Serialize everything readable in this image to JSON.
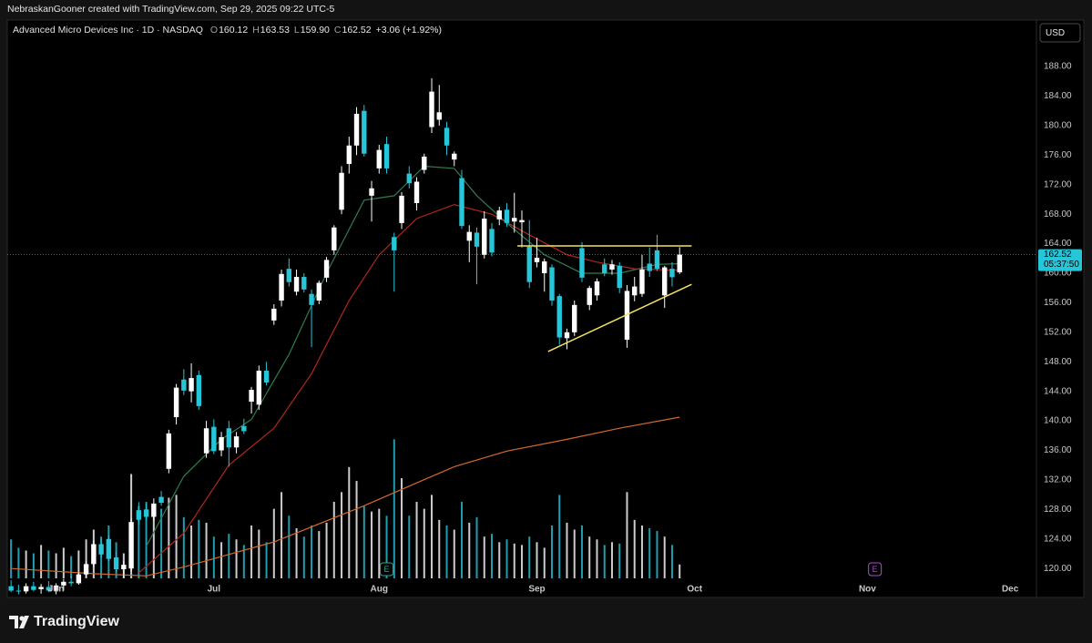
{
  "header": {
    "credit": "NebraskanGooner created with TradingView.com, Sep 29, 2025 09:22 UTC-5"
  },
  "toolbar": {
    "currency": "USD"
  },
  "footer": {
    "logo": "TradingView"
  },
  "chart_data": {
    "type": "candlestick",
    "title": "Advanced Micro Devices Inc · 1D · NASDAQ",
    "ohlc_legend": [
      {
        "key": "O",
        "text": "160.12"
      },
      {
        "key": "H",
        "text": "163.53"
      },
      {
        "key": "L",
        "text": "159.90"
      },
      {
        "key": "C",
        "text": "162.52"
      }
    ],
    "change": "+3.06 (+1.92%)",
    "last_price": 162.52,
    "countdown": "05:37:50",
    "up_color": "#ffffff",
    "down_color": "#26c6da",
    "grid": false,
    "ylim": [
      116.2,
      194.3
    ],
    "yticks": [
      {
        "value": 120,
        "label": "120.00"
      },
      {
        "value": 124,
        "label": "124.00"
      },
      {
        "value": 128,
        "label": "128.00"
      },
      {
        "value": 132,
        "label": "132.00"
      },
      {
        "value": 136,
        "label": "136.00"
      },
      {
        "value": 140,
        "label": "140.00"
      },
      {
        "value": 144,
        "label": "144.00"
      },
      {
        "value": 148,
        "label": "148.00"
      },
      {
        "value": 152,
        "label": "152.00"
      },
      {
        "value": 156,
        "label": "156.00"
      },
      {
        "value": 160,
        "label": "160.00"
      },
      {
        "value": 164,
        "label": "164.00"
      },
      {
        "value": 168,
        "label": "168.00"
      },
      {
        "value": 172,
        "label": "172.00"
      },
      {
        "value": 176,
        "label": "176.00"
      },
      {
        "value": 180,
        "label": "180.00"
      },
      {
        "value": 184,
        "label": "184.00"
      },
      {
        "value": 188,
        "label": "188.00"
      }
    ],
    "volume_lim": [
      0,
      110
    ],
    "categories": [
      null,
      null,
      null,
      null,
      null,
      null,
      "Jun",
      null,
      null,
      null,
      null,
      null,
      null,
      null,
      null,
      null,
      null,
      null,
      null,
      null,
      null,
      null,
      null,
      null,
      null,
      null,
      null,
      "Jul",
      null,
      null,
      null,
      null,
      null,
      null,
      null,
      null,
      null,
      null,
      null,
      null,
      null,
      null,
      null,
      null,
      null,
      null,
      null,
      null,
      null,
      "Aug",
      null,
      null,
      null,
      null,
      null,
      null,
      null,
      null,
      null,
      null,
      null,
      null,
      null,
      null,
      null,
      null,
      null,
      null,
      null,
      null,
      "Sep",
      null,
      null,
      null,
      null,
      null,
      null,
      null,
      null,
      null,
      null,
      null,
      null,
      null,
      null,
      null,
      null,
      null,
      null,
      null,
      null,
      "Oct",
      null,
      null,
      null,
      null,
      null,
      null,
      null,
      null,
      null,
      null,
      null,
      null,
      null,
      null,
      null,
      null,
      null,
      null,
      null,
      null,
      null,
      null,
      "Nov",
      null,
      null,
      null,
      null,
      null,
      null,
      null,
      null,
      null,
      null,
      null,
      null,
      null,
      null,
      null,
      null,
      null,
      null,
      "Dec",
      null,
      null,
      null
    ],
    "open": [
      117.6,
      117.0,
      116.9,
      117.6,
      117.2,
      117.5,
      117.0,
      117.7,
      118.2,
      118.0,
      119.2,
      120.6,
      123.3,
      124.0,
      121.5,
      119.9,
      120.0,
      127.9,
      128.0,
      127.0,
      129.7,
      133.5,
      140.5,
      145.6,
      144.0,
      146.2,
      135.6,
      139.2,
      136.0,
      139.0,
      136.4,
      139.3,
      142.6,
      142.2,
      146.8,
      153.6,
      156.3,
      160.6,
      157.5,
      159.5,
      157.2,
      156.3,
      159.4,
      163.1,
      168.6,
      174.8,
      177.3,
      182.0,
      170.5,
      174.2,
      177.5,
      164.9,
      166.8,
      173.5,
      169.5,
      174.0,
      179.8,
      180.8,
      179.7,
      175.4,
      172.9,
      164.4,
      165.5,
      162.5,
      166.0,
      167.3,
      168.6,
      167.0,
      166.9,
      163.6,
      161.5,
      160.0,
      160.8,
      156.9,
      151.2,
      152.0,
      163.4,
      155.7,
      157.0,
      161.2,
      160.5,
      161.0,
      151.0,
      157.0,
      157.2,
      161.3,
      163.1,
      157.0,
      160.6,
      160.12,
      null,
      null,
      null,
      null,
      null,
      null,
      null,
      null,
      null,
      null,
      null,
      null,
      null,
      null,
      null,
      null,
      null,
      null,
      null,
      null,
      null,
      null,
      null,
      null,
      null,
      null,
      null,
      null,
      null,
      null,
      null,
      null,
      null,
      null,
      null,
      null,
      null,
      null,
      null,
      null,
      null,
      null,
      null,
      null,
      null,
      null,
      null
    ],
    "high": [
      118.4,
      117.8,
      118.0,
      118.2,
      117.9,
      118.3,
      118.0,
      118.6,
      119.0,
      119.5,
      121.0,
      123.8,
      124.0,
      124.5,
      122.3,
      121.0,
      126.8,
      129.0,
      128.8,
      129.5,
      130.5,
      138.8,
      145.0,
      147.0,
      147.8,
      146.8,
      140.0,
      140.2,
      138.5,
      140.0,
      138.5,
      140.3,
      144.6,
      147.5,
      148.0,
      155.8,
      160.5,
      162.0,
      160.5,
      160.0,
      157.8,
      159.0,
      162.2,
      166.5,
      174.5,
      178.5,
      182.5,
      182.8,
      172.5,
      177.4,
      178.5,
      165.5,
      171.0,
      174.5,
      173.0,
      176.2,
      186.4,
      185.5,
      180.5,
      176.5,
      174.0,
      166.5,
      166.2,
      168.4,
      166.8,
      169.0,
      169.5,
      170.9,
      168.5,
      167.2,
      164.8,
      162.0,
      161.2,
      157.2,
      152.5,
      156.3,
      164.2,
      158.3,
      159.3,
      162.0,
      161.8,
      161.5,
      158.4,
      159.5,
      162.5,
      163.5,
      165.2,
      161.0,
      161.5,
      163.53,
      null,
      null,
      null,
      null,
      null,
      null,
      null,
      null,
      null,
      null,
      null,
      null,
      null,
      null,
      null,
      null,
      null,
      null,
      null,
      null,
      null,
      null,
      null,
      null,
      null,
      null,
      null,
      null,
      null,
      null,
      null,
      null,
      null,
      null,
      null,
      null,
      null,
      null,
      null,
      null,
      null,
      null,
      null,
      null,
      null,
      null,
      null
    ],
    "low": [
      116.8,
      116.5,
      116.6,
      116.9,
      116.6,
      116.8,
      116.5,
      117.0,
      117.6,
      117.8,
      118.8,
      120.2,
      121.5,
      121.0,
      119.5,
      118.8,
      119.6,
      126.0,
      126.6,
      126.5,
      128.5,
      132.9,
      139.5,
      143.5,
      142.5,
      141.5,
      135.0,
      135.5,
      135.2,
      133.8,
      135.6,
      138.2,
      141.0,
      141.5,
      144.8,
      153.0,
      155.5,
      158.2,
      157.0,
      157.4,
      150.0,
      155.8,
      158.8,
      162.5,
      168.0,
      173.5,
      176.0,
      175.8,
      167.0,
      173.5,
      173.5,
      157.5,
      166.0,
      171.5,
      168.5,
      173.5,
      179.0,
      180.0,
      176.0,
      174.5,
      166.0,
      161.5,
      158.5,
      162.0,
      162.3,
      166.5,
      166.3,
      165.5,
      163.5,
      158.0,
      160.8,
      157.5,
      155.6,
      150.3,
      149.7,
      151.5,
      158.8,
      155.0,
      156.3,
      159.6,
      159.8,
      157.3,
      149.9,
      156.2,
      156.8,
      159.5,
      160.3,
      155.3,
      158.2,
      159.9,
      null,
      null,
      null,
      null,
      null,
      null,
      null,
      null,
      null,
      null,
      null,
      null,
      null,
      null,
      null,
      null,
      null,
      null,
      null,
      null,
      null,
      null,
      null,
      null,
      null,
      null,
      null,
      null,
      null,
      null,
      null,
      null,
      null,
      null,
      null,
      null,
      null,
      null,
      null,
      null,
      null,
      null,
      null,
      null,
      null,
      null,
      null
    ],
    "close": [
      117.0,
      116.9,
      117.6,
      117.1,
      117.5,
      117.0,
      117.7,
      118.2,
      118.0,
      119.2,
      120.6,
      123.3,
      121.9,
      121.3,
      119.9,
      120.5,
      126.3,
      126.6,
      127.0,
      128.8,
      128.9,
      138.3,
      144.5,
      144.1,
      145.8,
      142.0,
      139.0,
      135.9,
      137.8,
      136.4,
      137.9,
      138.6,
      144.2,
      146.8,
      145.2,
      155.2,
      159.9,
      158.8,
      159.5,
      157.8,
      155.7,
      158.7,
      161.8,
      166.2,
      173.6,
      177.3,
      181.6,
      176.2,
      171.5,
      176.7,
      174.2,
      163.1,
      170.5,
      172.2,
      172.4,
      175.8,
      184.6,
      181.8,
      177.3,
      176.2,
      166.4,
      165.6,
      163.6,
      167.4,
      162.8,
      168.5,
      166.8,
      167.5,
      167.2,
      158.8,
      162.1,
      161.6,
      156.3,
      151.3,
      152.0,
      155.7,
      159.4,
      158.0,
      158.9,
      160.0,
      161.2,
      158.0,
      157.6,
      158.2,
      160.5,
      160.3,
      160.6,
      160.8,
      159.46,
      162.52,
      null,
      null,
      null,
      null,
      null,
      null,
      null,
      null,
      null,
      null,
      null,
      null,
      null,
      null,
      null,
      null,
      null,
      null,
      null,
      null,
      null,
      null,
      null,
      null,
      null,
      null,
      null,
      null,
      null,
      null,
      null,
      null,
      null,
      null,
      null,
      null,
      null,
      null,
      null,
      null,
      null,
      null,
      null,
      null,
      null,
      null,
      null
    ],
    "volume": [
      28,
      22,
      20,
      18,
      24,
      20,
      18,
      22,
      16,
      20,
      28,
      35,
      30,
      38,
      26,
      18,
      75,
      52,
      55,
      48,
      50,
      58,
      60,
      44,
      38,
      42,
      40,
      30,
      26,
      32,
      28,
      24,
      38,
      35,
      26,
      50,
      62,
      45,
      36,
      30,
      38,
      34,
      40,
      55,
      62,
      80,
      70,
      52,
      48,
      50,
      45,
      100,
      72,
      45,
      55,
      50,
      60,
      42,
      38,
      35,
      55,
      40,
      44,
      30,
      32,
      26,
      28,
      25,
      24,
      30,
      26,
      22,
      38,
      60,
      40,
      35,
      38,
      30,
      28,
      24,
      26,
      25,
      62,
      42,
      38,
      36,
      34,
      30,
      24,
      10,
      null,
      null,
      null,
      null,
      null,
      null,
      null,
      null,
      null,
      null,
      null,
      null,
      null,
      null,
      null,
      null,
      null,
      null,
      null,
      null,
      null,
      null,
      null,
      null,
      null,
      null,
      null,
      null,
      null,
      null,
      null,
      null,
      null,
      null,
      null,
      null,
      null,
      null,
      null,
      null,
      null,
      null,
      null,
      null,
      null,
      null,
      null
    ],
    "overlays": [
      {
        "color": "#2e7d4f",
        "x": [
          18,
          23,
          28,
          32,
          37,
          42,
          47,
          51,
          55,
          59,
          62,
          66,
          71,
          76,
          81,
          86,
          89
        ],
        "values": [
          123.0,
          132.5,
          137.5,
          140.2,
          149.0,
          160.0,
          169.9,
          170.5,
          174.5,
          174.2,
          170.5,
          166.8,
          162.5,
          160.0,
          160.0,
          161.2,
          161.3
        ]
      },
      {
        "color": "#b3261e",
        "x": [
          17,
          23,
          29,
          35,
          40,
          45,
          49,
          54,
          59,
          64,
          69,
          74,
          78,
          83,
          89
        ],
        "values": [
          119.4,
          124.8,
          134.0,
          139.0,
          146.4,
          156.3,
          162.5,
          167.4,
          169.3,
          168.0,
          165.2,
          162.5,
          161.5,
          160.6,
          160.4
        ]
      },
      {
        "color": "#d2692e",
        "x": [
          0,
          11,
          18,
          23,
          35,
          47,
          54,
          59,
          66,
          74,
          81,
          89
        ],
        "values": [
          120.0,
          119.3,
          119.0,
          120.2,
          123.6,
          128.5,
          131.6,
          133.8,
          135.9,
          137.5,
          139.0,
          140.5
        ]
      }
    ],
    "drawings": [
      {
        "color": "#f2e55c",
        "x": [
          67.4,
          90.6
        ],
        "y": [
          163.7,
          163.7
        ]
      },
      {
        "color": "#f2e55c",
        "x": [
          71.5,
          90.6
        ],
        "y": [
          149.4,
          158.5
        ]
      }
    ],
    "events": [
      {
        "label": "E",
        "x": 50,
        "color": "#2ea38e"
      },
      {
        "label": "E",
        "x": 115,
        "color": "#b04ad8"
      }
    ]
  }
}
